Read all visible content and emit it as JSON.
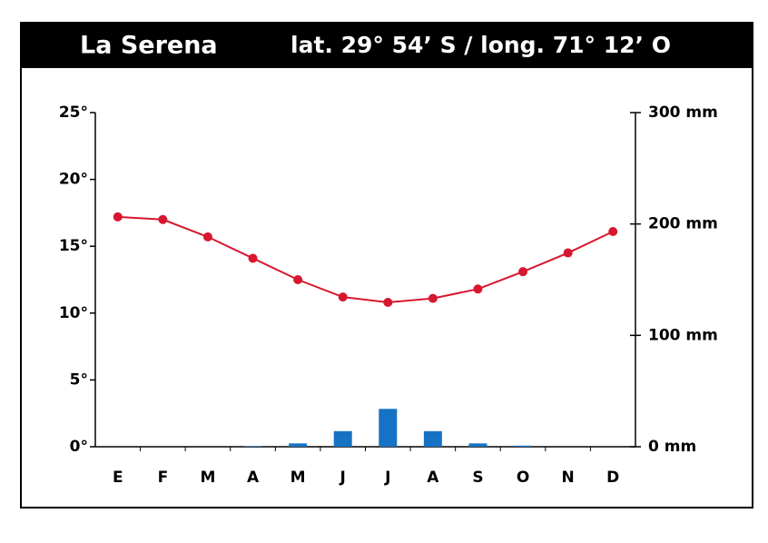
{
  "chart_data": {
    "type": "climograph",
    "title": "La Serena",
    "subtitle": "lat. 29° 54’ S / long. 71° 12’ O",
    "categories": [
      "E",
      "F",
      "M",
      "A",
      "M",
      "J",
      "J",
      "A",
      "S",
      "O",
      "N",
      "D"
    ],
    "series": [
      {
        "type": "line",
        "color": "#d7172f",
        "axis": "y",
        "values": [
          17.2,
          17.0,
          15.7,
          14.1,
          12.5,
          11.2,
          10.8,
          11.1,
          11.8,
          13.1,
          14.5,
          16.1
        ]
      },
      {
        "type": "bar",
        "color": "#1673c4",
        "axis": "y2",
        "values": [
          0,
          0,
          0,
          0.5,
          3,
          14,
          34,
          14,
          3,
          1,
          0,
          0
        ]
      }
    ],
    "ylim": [
      0,
      25
    ],
    "yticks": [
      {
        "value": 0,
        "label": "0°"
      },
      {
        "value": 5,
        "label": "5°"
      },
      {
        "value": 10,
        "label": "10°"
      },
      {
        "value": 15,
        "label": "15°"
      },
      {
        "value": 20,
        "label": "20°"
      },
      {
        "value": 25,
        "label": "25°"
      }
    ],
    "y2lim": [
      0,
      300
    ],
    "y2ticks": [
      {
        "value": 0,
        "label": "0 mm"
      },
      {
        "value": 100,
        "label": "100 mm"
      },
      {
        "value": 200,
        "label": "200 mm"
      },
      {
        "value": 300,
        "label": "300 mm"
      }
    ]
  }
}
